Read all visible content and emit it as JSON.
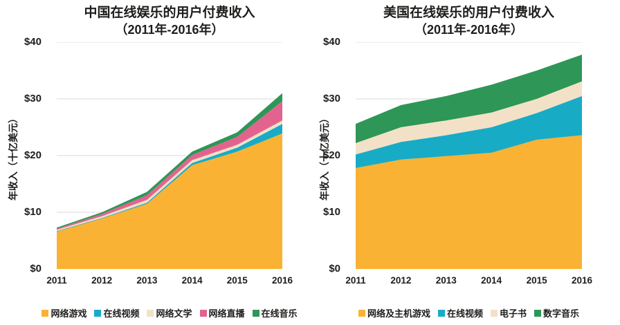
{
  "style": {
    "background": "#FFFFFF",
    "text_color": "#1D1D1B",
    "grid_color": "#D8D8D8"
  },
  "chart_data": [
    {
      "type": "area",
      "stacked": true,
      "title": "中国在线娱乐的用户付费收入",
      "subtitle": "（2011年-2016年）",
      "ylabel": "年收入（十亿美元）",
      "x": [
        "2011",
        "2012",
        "2013",
        "2014",
        "2015",
        "2016"
      ],
      "series": [
        {
          "name": "网络游戏",
          "color": "#F9B233",
          "values": [
            6.6,
            8.9,
            11.5,
            18.3,
            20.7,
            23.9
          ]
        },
        {
          "name": "在线视频",
          "color": "#18ABC6",
          "values": [
            0.1,
            0.1,
            0.2,
            0.4,
            0.7,
            1.7
          ]
        },
        {
          "name": "网络文学",
          "color": "#F3E1C7",
          "values": [
            0.2,
            0.3,
            0.5,
            0.5,
            0.5,
            0.6
          ]
        },
        {
          "name": "网络直播",
          "color": "#E2648E",
          "values": [
            0.2,
            0.4,
            0.8,
            0.9,
            1.4,
            3.4
          ]
        },
        {
          "name": "在线音乐",
          "color": "#2E9657",
          "values": [
            0.2,
            0.3,
            0.6,
            0.6,
            0.8,
            1.4
          ]
        }
      ],
      "totals": [
        7.3,
        10.0,
        13.6,
        20.7,
        24.1,
        31.0
      ],
      "ylim": [
        0,
        40
      ],
      "yticks": [
        {
          "value": 0,
          "label": "$0"
        },
        {
          "value": 10,
          "label": "$10"
        },
        {
          "value": 20,
          "label": "$20"
        },
        {
          "value": 30,
          "label": "$30"
        },
        {
          "value": 40,
          "label": "$40"
        }
      ],
      "grid": "horizontal",
      "legend_position": "bottom"
    },
    {
      "type": "area",
      "stacked": true,
      "title": "美国在线娱乐的用户付费收入",
      "subtitle": "（2011年-2016年）",
      "ylabel": "年收入（十亿美元）",
      "x": [
        "2011",
        "2012",
        "2013",
        "2014",
        "2015",
        "2016"
      ],
      "series": [
        {
          "name": "网络及主机游戏",
          "color": "#F9B233",
          "values": [
            17.8,
            19.3,
            19.9,
            20.5,
            22.8,
            23.6
          ]
        },
        {
          "name": "在线视频",
          "color": "#18ABC6",
          "values": [
            2.4,
            3.1,
            3.7,
            4.5,
            4.7,
            6.9
          ]
        },
        {
          "name": "电子书",
          "color": "#F3E1C7",
          "values": [
            2.0,
            2.6,
            2.6,
            2.6,
            2.5,
            2.6
          ]
        },
        {
          "name": "数字音乐",
          "color": "#2E9657",
          "values": [
            3.4,
            3.9,
            4.3,
            4.9,
            5.0,
            4.7
          ]
        }
      ],
      "totals": [
        25.6,
        28.9,
        30.5,
        32.5,
        35.0,
        37.8
      ],
      "ylim": [
        0,
        40
      ],
      "yticks": [
        {
          "value": 0,
          "label": "$0"
        },
        {
          "value": 10,
          "label": "$10"
        },
        {
          "value": 20,
          "label": "$20"
        },
        {
          "value": 30,
          "label": "$30"
        },
        {
          "value": 40,
          "label": "$40"
        }
      ],
      "grid": "horizontal",
      "legend_position": "bottom"
    }
  ]
}
